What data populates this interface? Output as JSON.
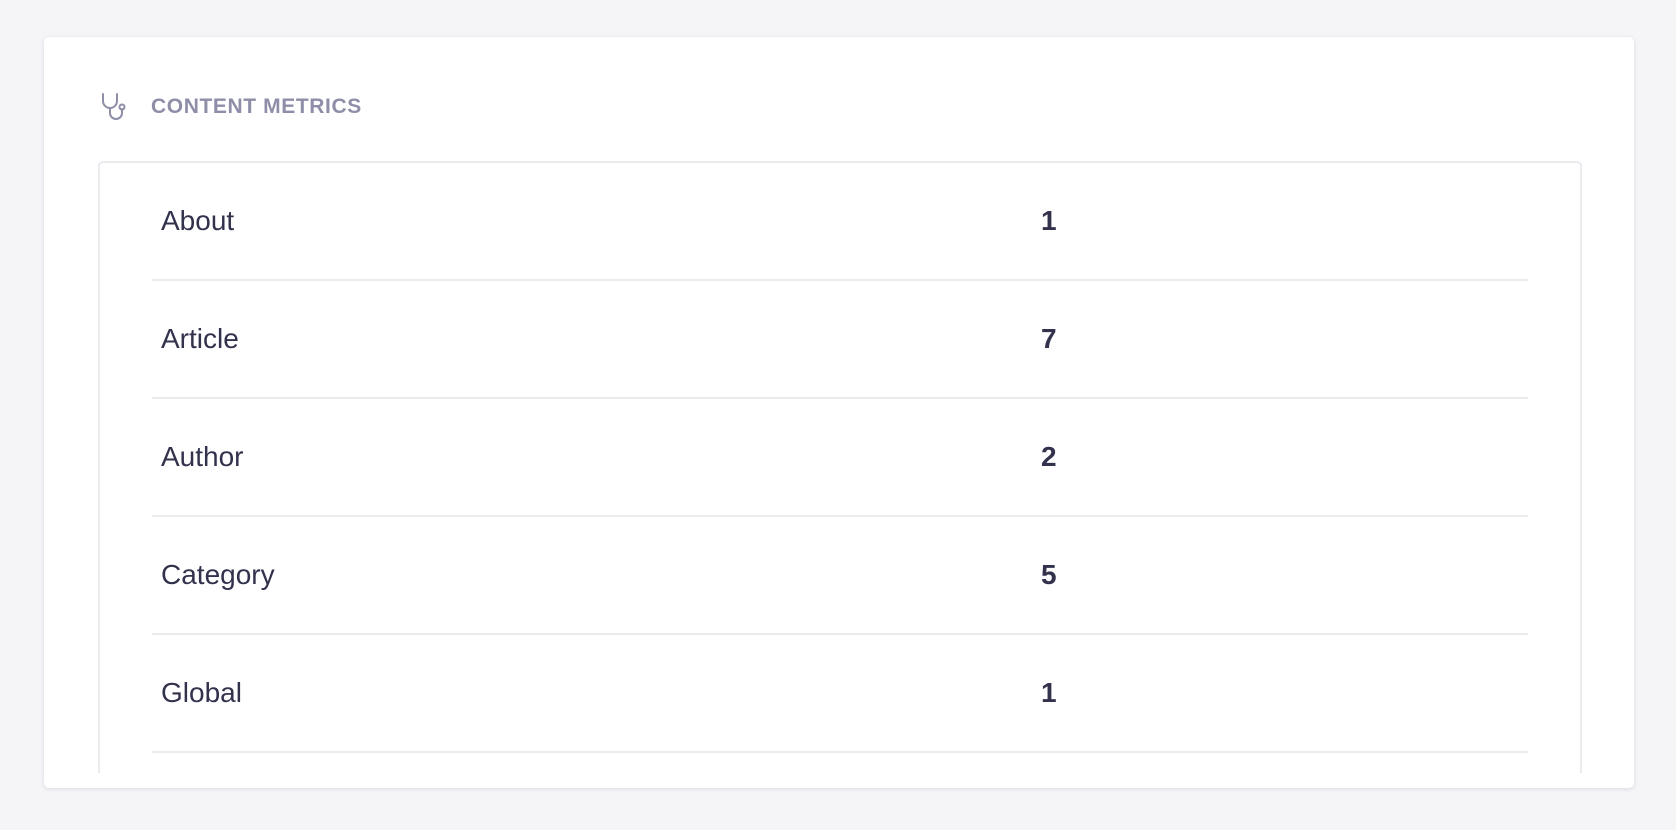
{
  "header": {
    "title": "CONTENT METRICS",
    "icon": "stethoscope-icon"
  },
  "metrics": [
    {
      "label": "About",
      "value": "1"
    },
    {
      "label": "Article",
      "value": "7"
    },
    {
      "label": "Author",
      "value": "2"
    },
    {
      "label": "Category",
      "value": "5"
    },
    {
      "label": "Global",
      "value": "1"
    }
  ]
}
